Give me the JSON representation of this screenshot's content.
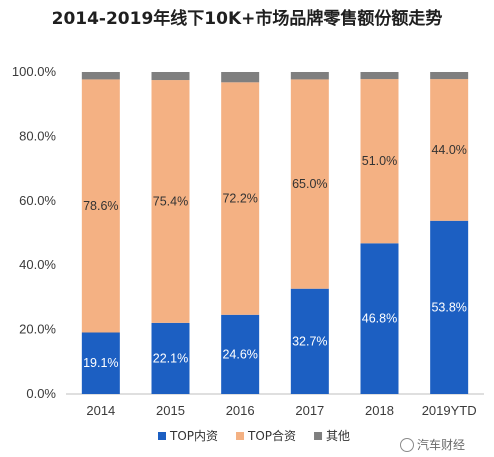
{
  "chart_data": {
    "type": "bar",
    "stacked": true,
    "title": "2014-2019年线下10K+市场品牌零售额份额走势",
    "xlabel": "",
    "ylabel": "",
    "categories": [
      "2014",
      "2015",
      "2016",
      "2017",
      "2018",
      "2019YTD"
    ],
    "series": [
      {
        "name": "TOP内资",
        "color": "#1c5fc2",
        "values": [
          19.1,
          22.1,
          24.6,
          32.7,
          46.8,
          53.8
        ]
      },
      {
        "name": "TOP合资",
        "color": "#f4b183",
        "values": [
          78.6,
          75.4,
          72.2,
          65.0,
          51.0,
          44.0
        ]
      },
      {
        "name": "其他",
        "color": "#7f7f7f",
        "values": [
          2.3,
          2.5,
          3.2,
          2.3,
          2.2,
          2.2
        ]
      }
    ],
    "data_labels": {
      "TOP内资": [
        "19.1%",
        "22.1%",
        "24.6%",
        "32.7%",
        "46.8%",
        "53.8%"
      ],
      "TOP合资": [
        "78.6%",
        "75.4%",
        "72.2%",
        "65.0%",
        "51.0%",
        "44.0%"
      ]
    },
    "yticks": [
      "0.0%",
      "20.0%",
      "40.0%",
      "60.0%",
      "80.0%",
      "100.0%"
    ],
    "ylim": [
      0,
      100
    ],
    "grid": false,
    "legend": "bottom"
  },
  "watermark": {
    "text": "汽车财经"
  }
}
